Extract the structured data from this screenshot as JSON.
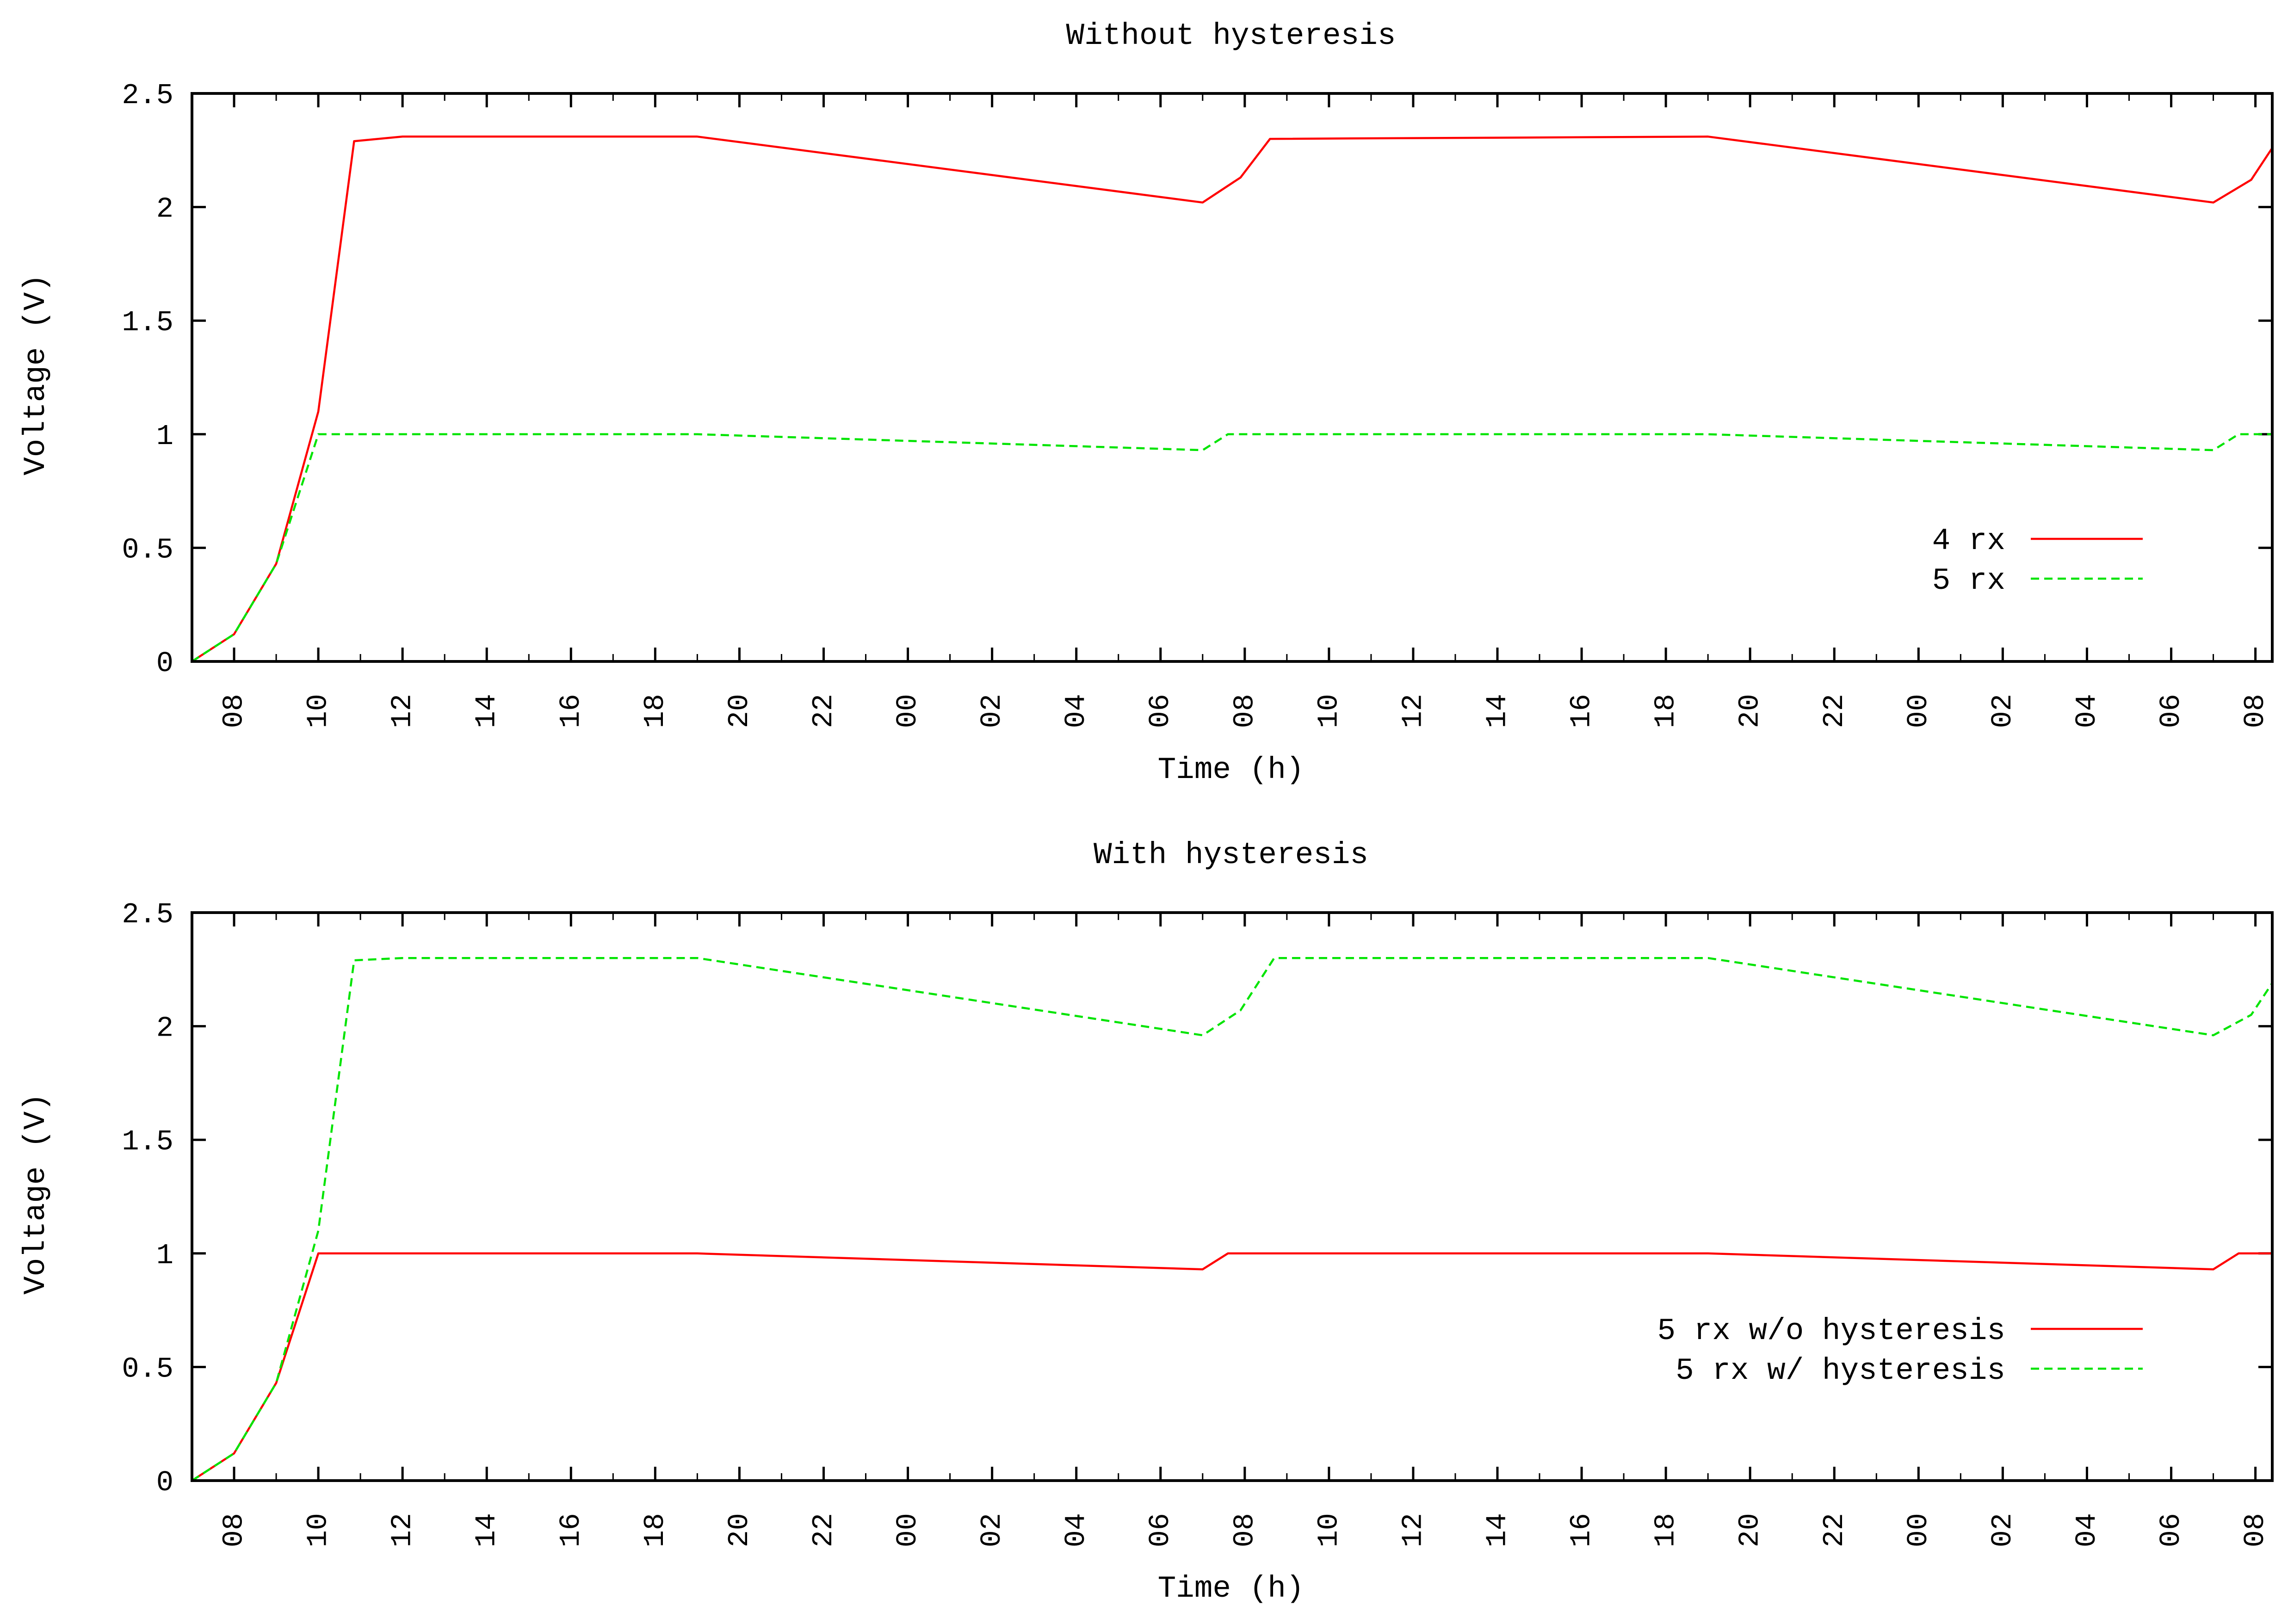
{
  "colors": {
    "red": "#ff0000",
    "green": "#00e400",
    "axis": "#000000",
    "background": "#ffffff"
  },
  "chart_data": [
    {
      "type": "line",
      "title": "Without hysteresis",
      "xlabel": "Time (h)",
      "ylabel": "Voltage (V)",
      "x_unit": "hour of day (continuous hours from 07:00 day 1)",
      "xlim": [
        7,
        56.4
      ],
      "ylim": [
        0,
        2.5
      ],
      "yticks": [
        "0",
        "0.5",
        "1",
        "1.5",
        "2",
        "2.5"
      ],
      "xtick_labels": [
        "08",
        "10",
        "12",
        "14",
        "16",
        "18",
        "20",
        "22",
        "00",
        "02",
        "04",
        "06",
        "08",
        "10",
        "12",
        "14",
        "16",
        "18",
        "20",
        "22",
        "00",
        "02",
        "04",
        "06",
        "08"
      ],
      "grid": false,
      "legend_position": "right",
      "series": [
        {
          "name": "4 rx",
          "color": "#ff0000",
          "style": "solid",
          "x": [
            7,
            8,
            9,
            10,
            10.85,
            12,
            19,
            31,
            31.9,
            32.6,
            43,
            55,
            55.9,
            56.4
          ],
          "y": [
            0,
            0.12,
            0.43,
            1.1,
            2.29,
            2.31,
            2.31,
            2.02,
            2.13,
            2.3,
            2.31,
            2.02,
            2.12,
            2.26
          ]
        },
        {
          "name": "5 rx",
          "color": "#00e400",
          "style": "dashed",
          "x": [
            7,
            8,
            9,
            10,
            12,
            19,
            31,
            31.6,
            43,
            55,
            55.6,
            56.4
          ],
          "y": [
            0,
            0.12,
            0.43,
            1.0,
            1.0,
            1.0,
            0.93,
            1.0,
            1.0,
            0.93,
            1.0,
            1.0
          ]
        }
      ]
    },
    {
      "type": "line",
      "title": "With hysteresis",
      "xlabel": "Time (h)",
      "ylabel": "Voltage (V)",
      "x_unit": "hour of day (continuous hours from 07:00 day 1)",
      "xlim": [
        7,
        56.4
      ],
      "ylim": [
        0,
        2.5
      ],
      "yticks": [
        "0",
        "0.5",
        "1",
        "1.5",
        "2",
        "2.5"
      ],
      "xtick_labels": [
        "08",
        "10",
        "12",
        "14",
        "16",
        "18",
        "20",
        "22",
        "00",
        "02",
        "04",
        "06",
        "08",
        "10",
        "12",
        "14",
        "16",
        "18",
        "20",
        "22",
        "00",
        "02",
        "04",
        "06",
        "08"
      ],
      "grid": false,
      "legend_position": "right",
      "series": [
        {
          "name": "5 rx w/o hysteresis",
          "color": "#ff0000",
          "style": "solid",
          "x": [
            7,
            8,
            9,
            10,
            12,
            19,
            31,
            31.6,
            43,
            55,
            55.6,
            56.4
          ],
          "y": [
            0,
            0.12,
            0.43,
            1.0,
            1.0,
            1.0,
            0.93,
            1.0,
            1.0,
            0.93,
            1.0,
            1.0
          ]
        },
        {
          "name": "5 rx w/ hysteresis",
          "color": "#00e400",
          "style": "dashed",
          "x": [
            7,
            8,
            9,
            10,
            10.85,
            12,
            19,
            31,
            31.9,
            32.7,
            43,
            55,
            55.9,
            56.4
          ],
          "y": [
            0,
            0.12,
            0.43,
            1.1,
            2.29,
            2.3,
            2.3,
            1.96,
            2.07,
            2.3,
            2.3,
            1.96,
            2.05,
            2.19
          ]
        }
      ]
    }
  ]
}
